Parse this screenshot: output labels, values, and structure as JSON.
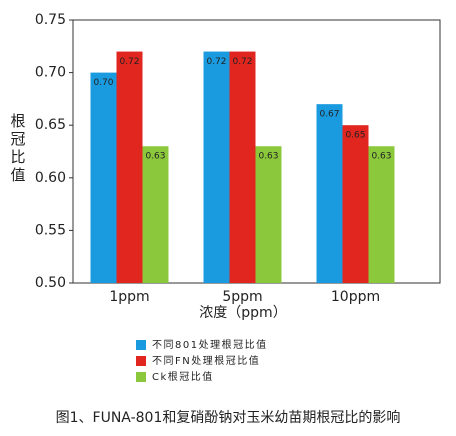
{
  "chart_data": {
    "type": "bar",
    "y_label": "根冠比值",
    "x_label": "浓度（ppm）",
    "caption": "图1、FUNA-801和复硝酚钠对玉米幼苗期根冠比的影响",
    "categories": [
      "1ppm",
      "5ppm",
      "10ppm"
    ],
    "series": [
      {
        "name": "不同801处理根冠比值",
        "color": "#1a9be0",
        "values": [
          0.7,
          0.72,
          0.67
        ],
        "value_labels": [
          "0.70",
          "0.72",
          "0.67"
        ]
      },
      {
        "name": "不同FN处理根冠比值",
        "color": "#e0261f",
        "values": [
          0.72,
          0.72,
          0.65
        ],
        "value_labels": [
          "0.72",
          "0.72",
          "0.65"
        ]
      },
      {
        "name": "Ck根冠比值",
        "color": "#8cc83c",
        "values": [
          0.63,
          0.63,
          0.63
        ],
        "value_labels": [
          "0.63",
          "0.63",
          "0.63"
        ]
      }
    ],
    "ylim": [
      0.5,
      0.75
    ],
    "yticks": [
      {
        "value": 0.5,
        "label": "0.50"
      },
      {
        "value": 0.55,
        "label": "0.55"
      },
      {
        "value": 0.6,
        "label": "0.60"
      },
      {
        "value": 0.65,
        "label": "0.65"
      },
      {
        "value": 0.7,
        "label": "0.70"
      },
      {
        "value": 0.75,
        "label": "0.75"
      }
    ],
    "grid": false
  }
}
